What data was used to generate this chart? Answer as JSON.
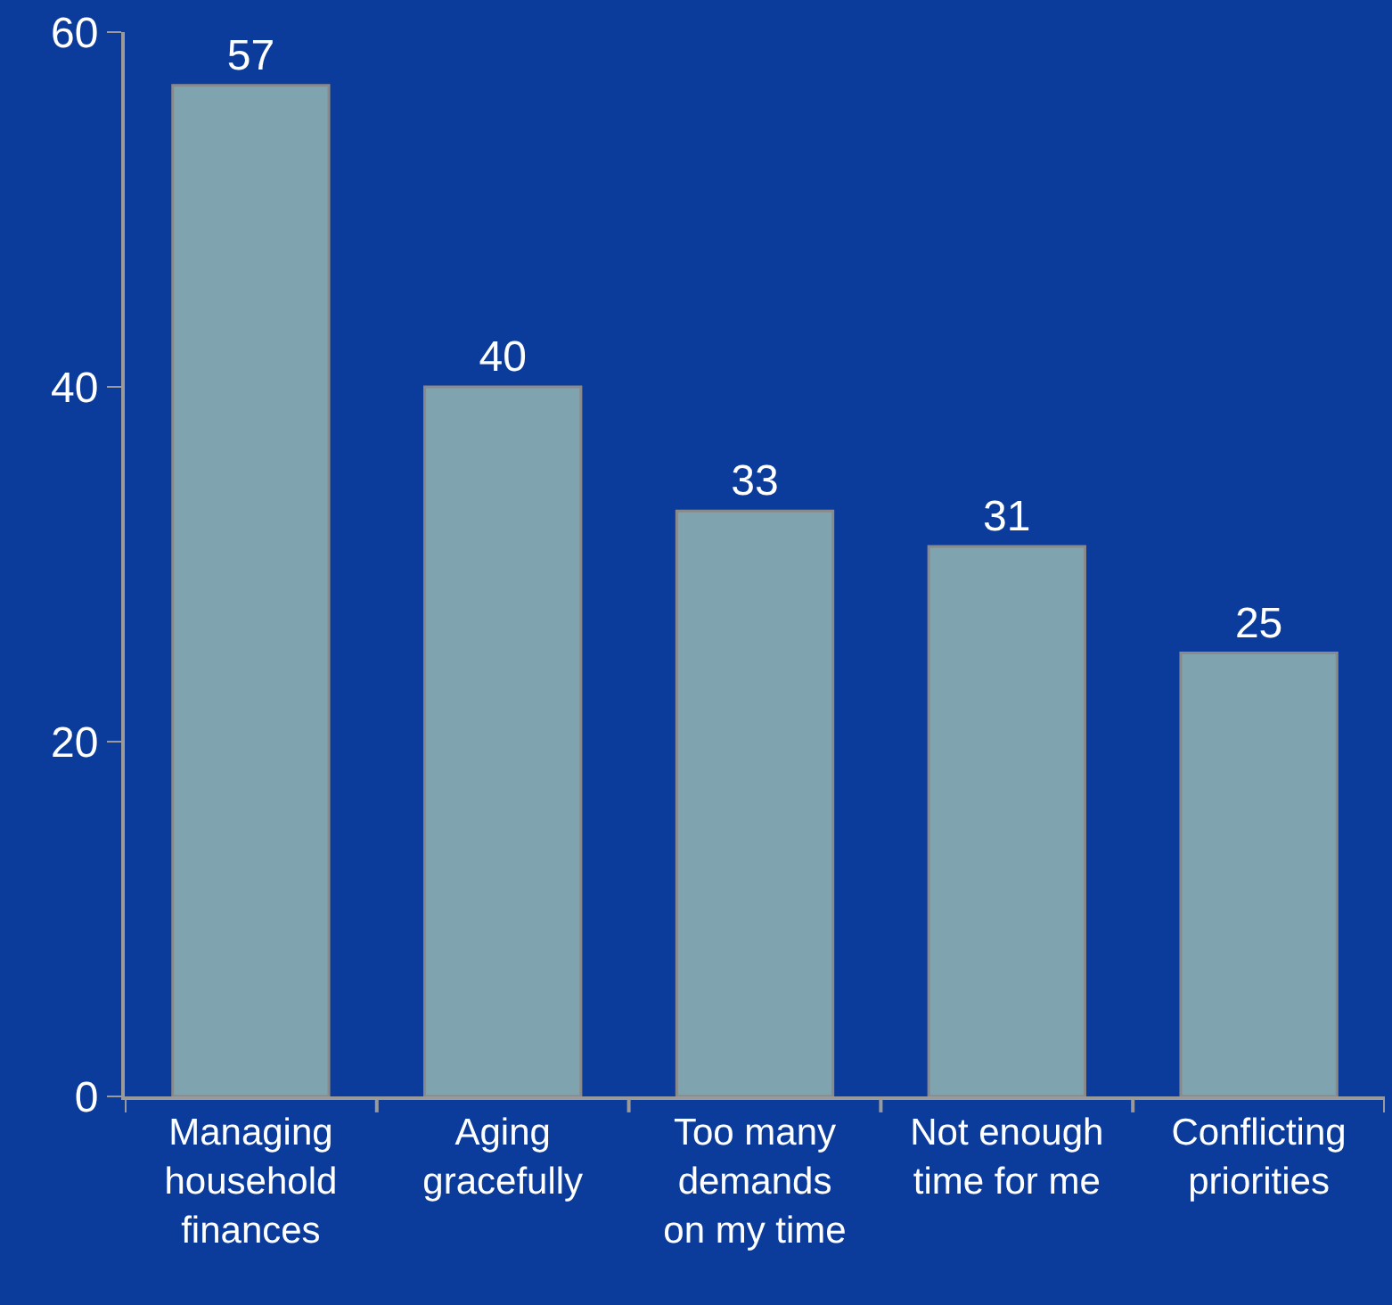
{
  "chart_data": {
    "type": "bar",
    "categories": [
      "Managing\nhousehold\nfinances",
      "Aging\ngracefully",
      "Too many\ndemands\non my time",
      "Not enough\ntime for me",
      "Conflicting\npriorities"
    ],
    "values": [
      57,
      40,
      33,
      31,
      25
    ],
    "color": "#7fa3af",
    "ylim": [
      0,
      60
    ],
    "yticks": [
      0,
      20,
      40,
      60
    ],
    "grid": false,
    "data_labels": true
  }
}
